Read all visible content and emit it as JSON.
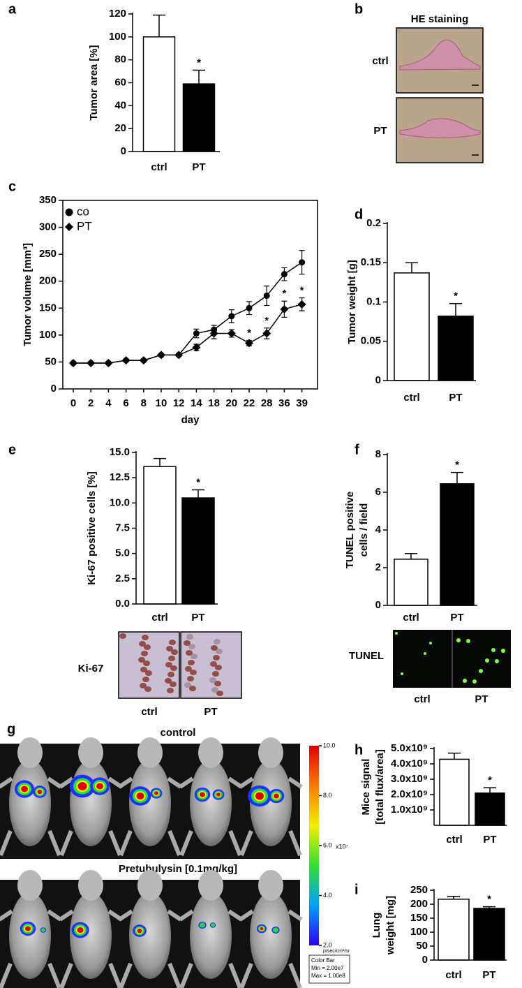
{
  "chart_data": [
    {
      "type": "bar",
      "panel": "a",
      "ylabel": [
        "Tumor area [%]"
      ],
      "categories": [
        "ctrl",
        "PT"
      ],
      "values": [
        100,
        59
      ],
      "errors": [
        19,
        12
      ],
      "colors": [
        "#ffffff",
        "#000000"
      ],
      "ylim": [
        0,
        120
      ],
      "yticks": [
        0,
        20,
        40,
        60,
        80,
        100,
        120
      ],
      "annotations": [
        {
          "text": "*",
          "category": "PT"
        }
      ]
    },
    {
      "type": "image",
      "panel": "b",
      "title": "HE staining",
      "labels": [
        "ctrl",
        "PT"
      ]
    },
    {
      "type": "line",
      "panel": "c",
      "ylabel": [
        "Tumor volume [mm³]"
      ],
      "xlabel": "day",
      "legend": "upper left",
      "categories": [
        "0",
        "2",
        "4",
        "6",
        "8",
        "10",
        "12",
        "14",
        "18",
        "20",
        "22",
        "28",
        "36",
        "39"
      ],
      "series": [
        {
          "name": "co",
          "marker": "circle",
          "color": "#000000",
          "values": [
            48,
            48,
            48,
            53,
            53,
            63,
            63,
            103,
            110,
            135,
            150,
            173,
            213,
            235
          ],
          "errors": [
            2,
            2,
            2,
            2,
            2,
            2,
            2,
            8,
            8,
            12,
            12,
            18,
            12,
            22
          ]
        },
        {
          "name": "PT",
          "marker": "diamond",
          "color": "#000000",
          "values": [
            48,
            48,
            48,
            53,
            53,
            63,
            63,
            77,
            103,
            103,
            85,
            103,
            148,
            157
          ],
          "errors": [
            2,
            2,
            2,
            2,
            2,
            2,
            2,
            6,
            10,
            7,
            5,
            10,
            15,
            12
          ]
        }
      ],
      "ylim": [
        0,
        350
      ],
      "yticks": [
        0,
        50,
        100,
        150,
        200,
        250,
        300,
        350
      ],
      "annotations": [
        {
          "text": "*",
          "x": "22",
          "series": "PT"
        },
        {
          "text": "*",
          "x": "28",
          "series": "PT"
        },
        {
          "text": "*",
          "x": "36",
          "series": "PT"
        },
        {
          "text": "*",
          "x": "39",
          "series": "PT"
        }
      ]
    },
    {
      "type": "bar",
      "panel": "d",
      "ylabel": [
        "Tumor weight [g]"
      ],
      "categories": [
        "ctrl",
        "PT"
      ],
      "values": [
        0.137,
        0.082
      ],
      "errors": [
        0.013,
        0.016
      ],
      "colors": [
        "#ffffff",
        "#000000"
      ],
      "ylim": [
        0,
        0.2
      ],
      "yticks": [
        0,
        0.05,
        0.1,
        0.15,
        0.2
      ],
      "annotations": [
        {
          "text": "*",
          "category": "PT"
        }
      ]
    },
    {
      "type": "bar",
      "panel": "e",
      "ylabel": [
        "Ki-67 positive cells [%]"
      ],
      "categories": [
        "ctrl",
        "PT"
      ],
      "values": [
        13.6,
        10.5
      ],
      "errors": [
        0.8,
        0.8
      ],
      "colors": [
        "#ffffff",
        "#000000"
      ],
      "ylim": [
        0,
        15
      ],
      "yticks": [
        {
          "value": 0,
          "label": "0.0"
        },
        {
          "value": 2.5,
          "label": "2.5"
        },
        {
          "value": 5,
          "label": "5.0"
        },
        {
          "value": 7.5,
          "label": "7.5"
        },
        {
          "value": 10,
          "label": "10.0"
        },
        {
          "value": 12.5,
          "label": "12.5"
        },
        {
          "value": 15,
          "label": "15.0"
        }
      ],
      "annotations": [
        {
          "text": "*",
          "category": "PT"
        }
      ],
      "image": {
        "label": "Ki-67",
        "captions": [
          "ctrl",
          "PT"
        ]
      }
    },
    {
      "type": "bar",
      "panel": "f",
      "ylabel": [
        "TUNEL positive",
        "cells / field"
      ],
      "categories": [
        "ctrl",
        "PT"
      ],
      "values": [
        2.45,
        6.45
      ],
      "errors": [
        0.3,
        0.6
      ],
      "colors": [
        "#ffffff",
        "#000000"
      ],
      "ylim": [
        0,
        8
      ],
      "yticks": [
        0,
        2,
        4,
        6,
        8
      ],
      "annotations": [
        {
          "text": "*",
          "category": "PT"
        }
      ],
      "image": {
        "label": "TUNEL",
        "captions": [
          "ctrl",
          "PT"
        ]
      }
    },
    {
      "type": "image",
      "panel": "g",
      "titles": [
        "control",
        "Pretubulysin [0.1mg/kg]"
      ],
      "colorbar": {
        "clim": [
          2,
          10
        ],
        "ticks": [
          {
            "value": 10,
            "label": "10.0"
          },
          {
            "value": 8,
            "label": "8.0"
          },
          {
            "value": 6,
            "label": "6.0"
          },
          {
            "value": 4,
            "label": "4.0"
          },
          {
            "value": 2,
            "label": "2.0"
          }
        ],
        "multiplier": "x10⁷",
        "unit": "p/sec/cm²/sr",
        "legend": [
          "Color Bar",
          "Min = 2.00e7",
          "Max = 1.00e8"
        ]
      }
    },
    {
      "type": "bar",
      "panel": "h",
      "ylabel": [
        "Mice signal",
        "[total flux/area]"
      ],
      "categories": [
        "ctrl",
        "PT"
      ],
      "values": [
        4300000000,
        2100000000
      ],
      "errors": [
        400000000,
        350000000
      ],
      "colors": [
        "#ffffff",
        "#000000"
      ],
      "ylim": [
        0,
        5000000000
      ],
      "yticks": [
        {
          "value": 1000000000,
          "label": "1.0x10⁹"
        },
        {
          "value": 2000000000,
          "label": "2.0x10⁹"
        },
        {
          "value": 3000000000,
          "label": "3.0x10⁹"
        },
        {
          "value": 4000000000,
          "label": "4.0x10⁹"
        },
        {
          "value": 5000000000,
          "label": "5.0x10⁹"
        }
      ],
      "annotations": [
        {
          "text": "*",
          "category": "PT"
        }
      ]
    },
    {
      "type": "bar",
      "panel": "i",
      "ylabel": [
        "Lung",
        "weight [mg]"
      ],
      "categories": [
        "ctrl",
        "PT"
      ],
      "values": [
        218,
        185
      ],
      "errors": [
        10,
        6
      ],
      "colors": [
        "#ffffff",
        "#000000"
      ],
      "ylim": [
        0,
        250
      ],
      "yticks": [
        0,
        50,
        100,
        150,
        200,
        250
      ],
      "annotations": [
        {
          "text": "*",
          "category": "PT"
        }
      ]
    }
  ]
}
